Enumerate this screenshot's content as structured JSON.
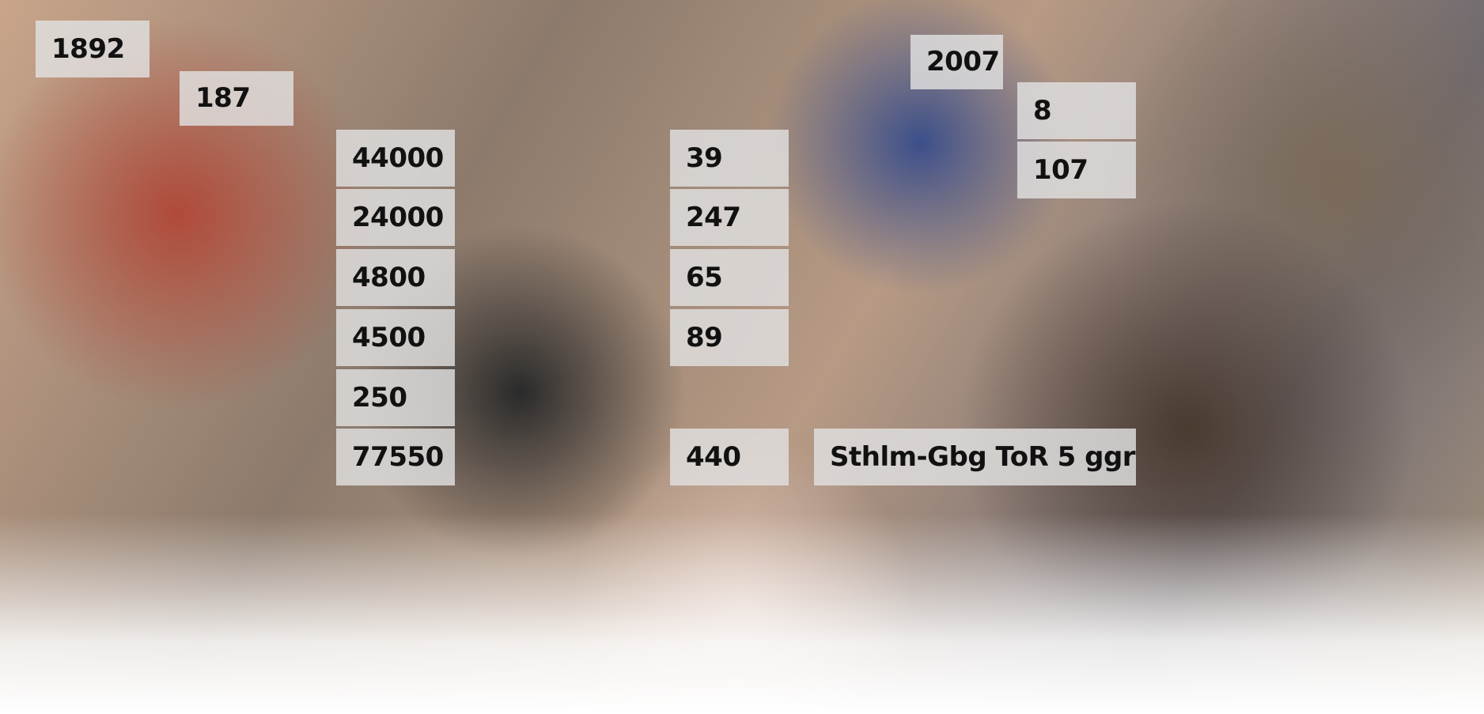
{
  "labels": [
    "1892",
    "187",
    "44000",
    "24000",
    "4800",
    "4500",
    "250",
    "77550",
    "39",
    "247",
    "65",
    "89",
    "440",
    "Sthlm-Gbg ToR 5 ggr",
    "2007",
    "8",
    "107"
  ]
}
